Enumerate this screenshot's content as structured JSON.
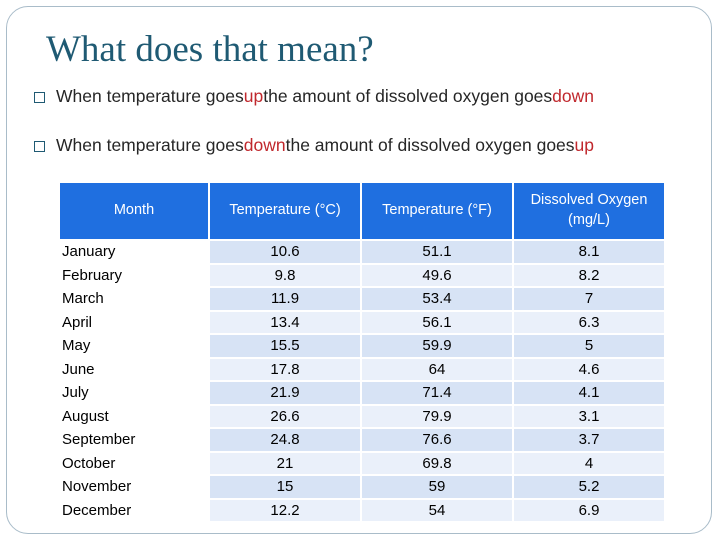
{
  "slide": {
    "title": "What does that mean?",
    "bullets": [
      {
        "pre": "When temperature goes ",
        "highlight1": "up",
        "mid": " the amount of dissolved oxygen goes ",
        "highlight2": "down"
      },
      {
        "pre": "When temperature goes ",
        "highlight1": "down",
        "mid": " the amount of dissolved oxygen goes ",
        "highlight2": "up"
      }
    ]
  },
  "table": {
    "headers": [
      "Month",
      "Temperature (°C)",
      "Temperature (°F)",
      "Dissolved Oxygen (mg/L)"
    ],
    "rows": [
      [
        "January",
        "10.6",
        "51.1",
        "8.1"
      ],
      [
        "February",
        "9.8",
        "49.6",
        "8.2"
      ],
      [
        "March",
        "11.9",
        "53.4",
        "7"
      ],
      [
        "April",
        "13.4",
        "56.1",
        "6.3"
      ],
      [
        "May",
        "15.5",
        "59.9",
        "5"
      ],
      [
        "June",
        "17.8",
        "64",
        "4.6"
      ],
      [
        "July",
        "21.9",
        "71.4",
        "4.1"
      ],
      [
        "August",
        "26.6",
        "79.9",
        "3.1"
      ],
      [
        "September",
        "24.8",
        "76.6",
        "3.7"
      ],
      [
        "October",
        "21",
        "69.8",
        "4"
      ],
      [
        "November",
        "15",
        "59",
        "5.2"
      ],
      [
        "December",
        "12.2",
        "54",
        "6.9"
      ]
    ]
  },
  "colors": {
    "title": "#1f5a73",
    "highlight": "#c0282d",
    "header_bg": "#1f6fe0",
    "cell_bg": "#d7e3f5"
  },
  "icons": {
    "bullet": "square-bullet-icon"
  }
}
